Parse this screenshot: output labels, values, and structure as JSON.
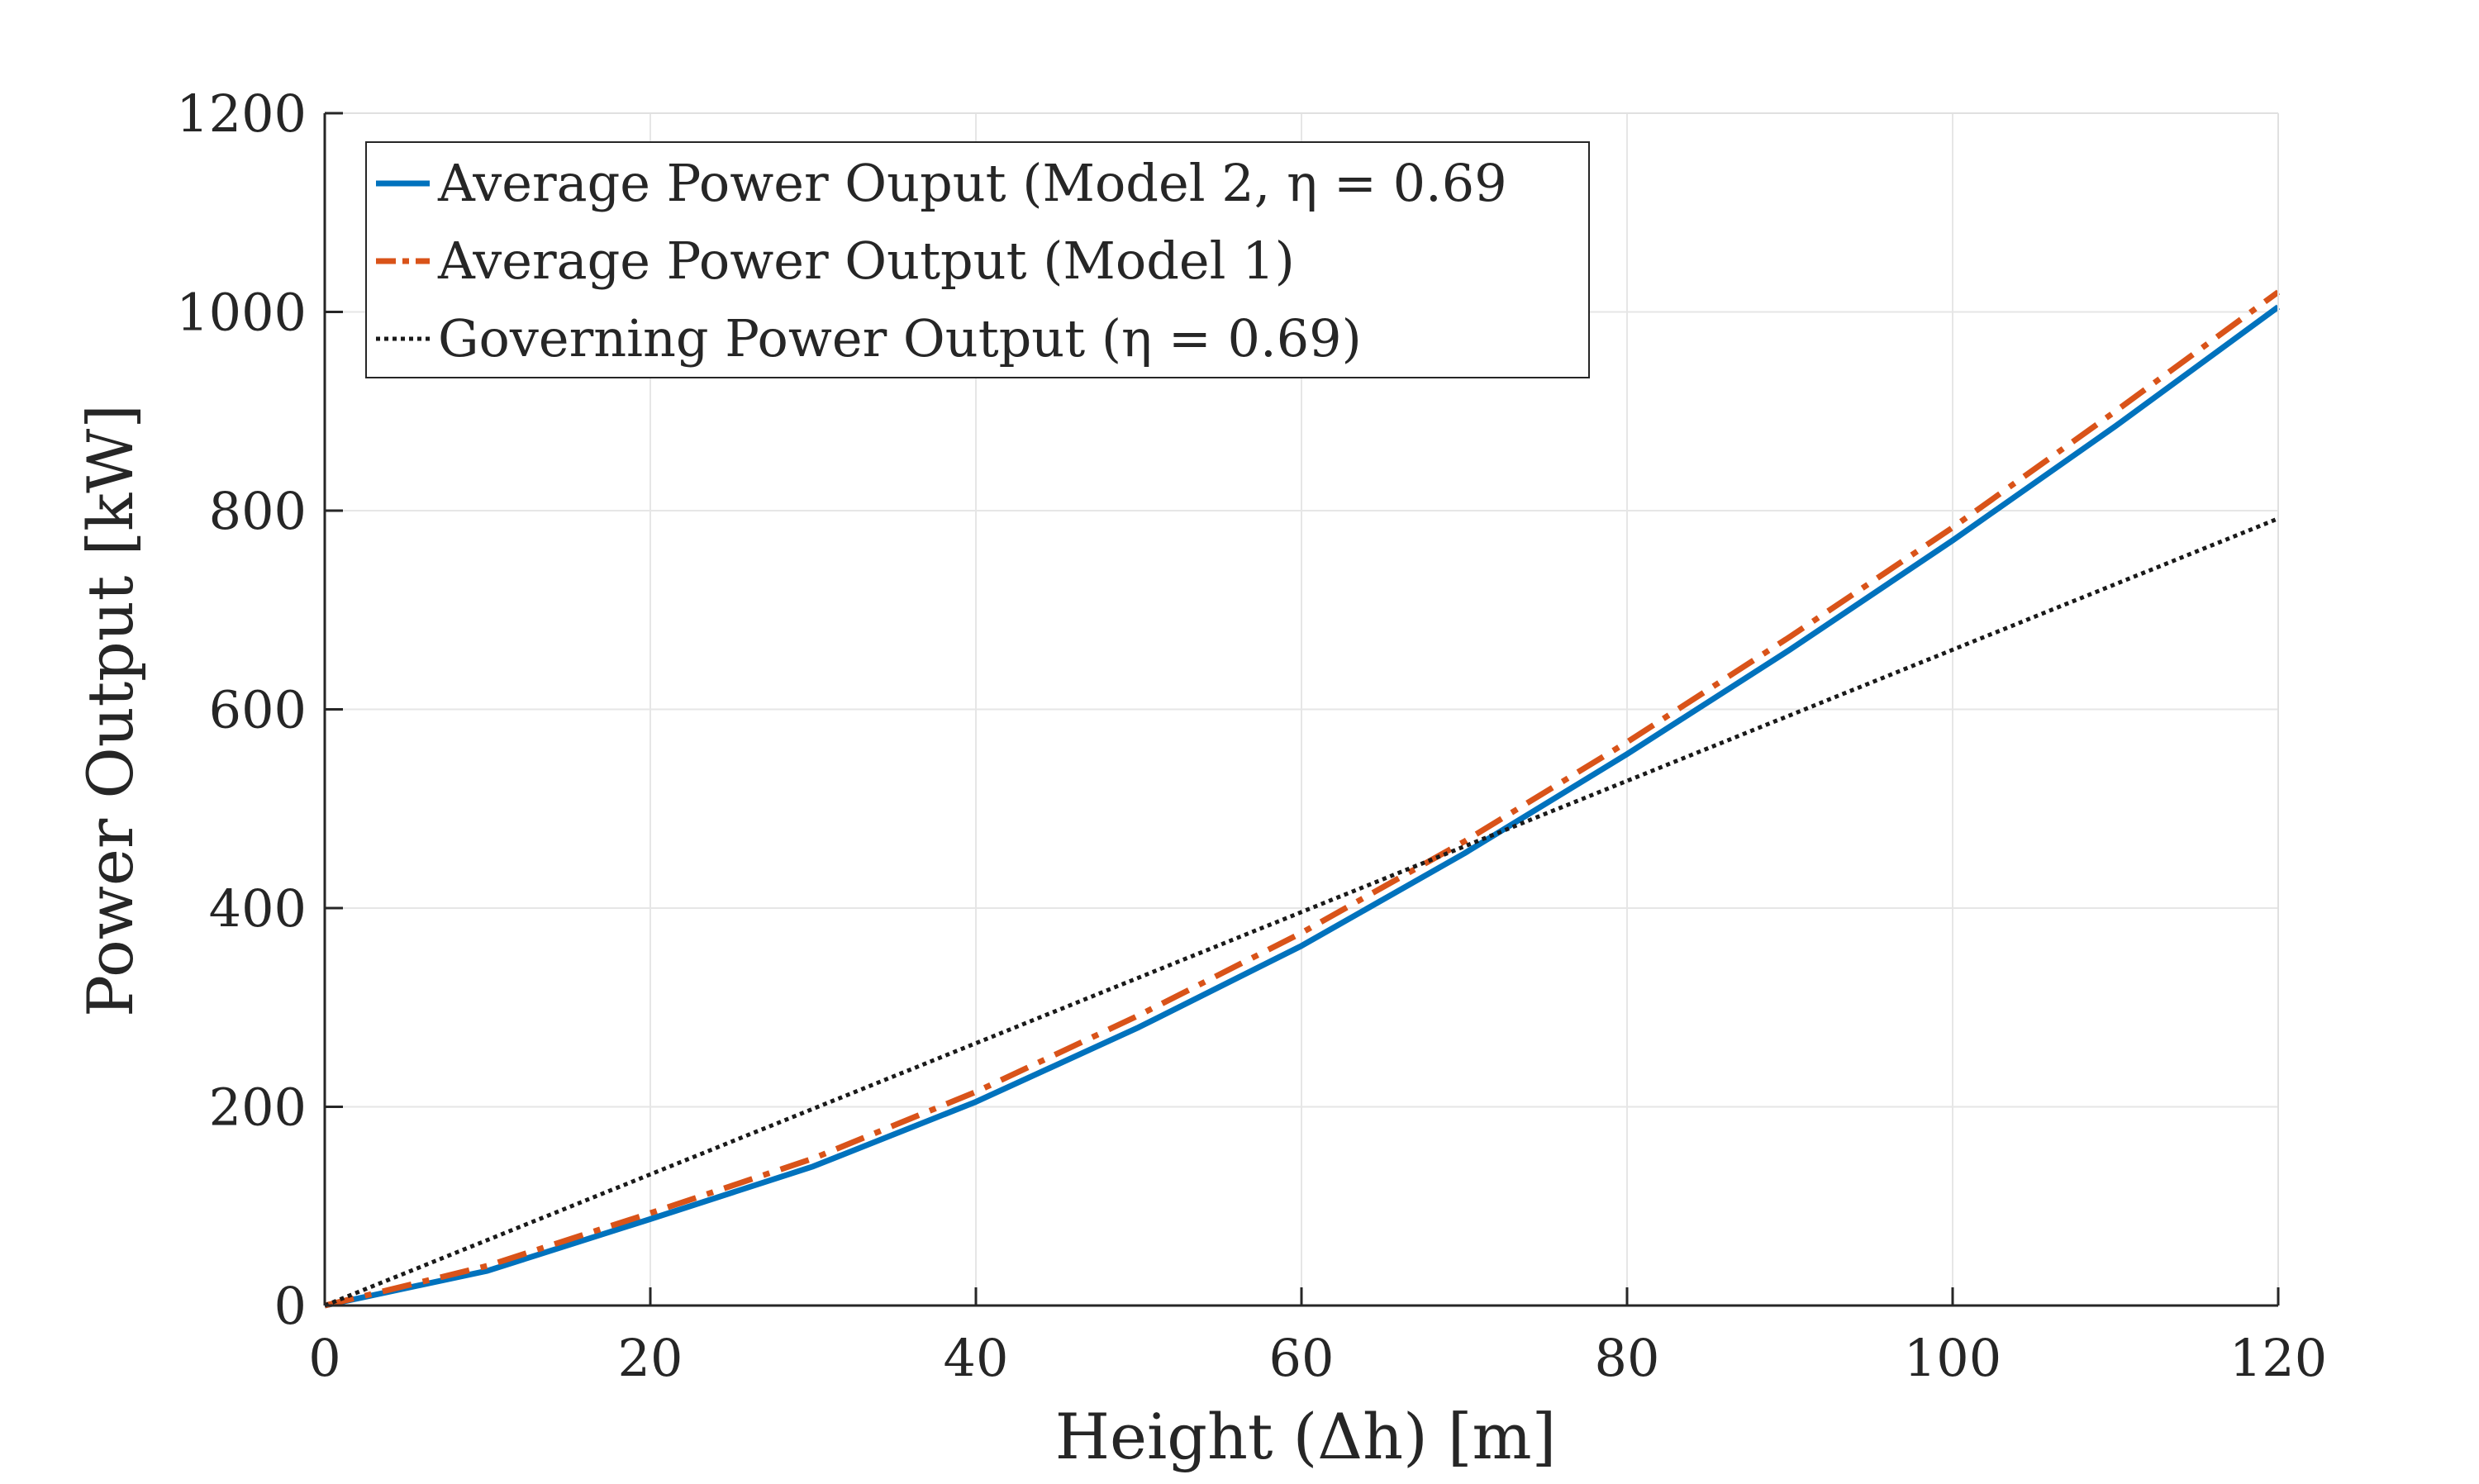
{
  "chart_data": {
    "type": "line",
    "xlabel": "Height (Δh) [m]",
    "ylabel": "Power Output [kW]",
    "xlim": [
      0,
      120
    ],
    "ylim": [
      0,
      1200
    ],
    "xticks": [
      0,
      20,
      40,
      60,
      80,
      100,
      120
    ],
    "yticks": [
      0,
      200,
      400,
      600,
      800,
      1000,
      1200
    ],
    "grid": true,
    "legend_position": "top-left",
    "series": [
      {
        "name": "Average Power Ouput (Model 2, η = 0.69",
        "style": "solid",
        "color": "#0072BD",
        "x": [
          0,
          10,
          20,
          30,
          40,
          50,
          60,
          70,
          80,
          90,
          100,
          110,
          120
        ],
        "y": [
          0,
          35,
          87,
          140,
          205,
          280,
          362,
          455,
          555,
          660,
          770,
          885,
          1005
        ]
      },
      {
        "name": "Average Power Output (Model 1)",
        "style": "dashdot",
        "color": "#D95319",
        "x": [
          0,
          10,
          20,
          30,
          40,
          50,
          60,
          70,
          80,
          90,
          100,
          110,
          120
        ],
        "y": [
          0,
          40,
          93,
          148,
          215,
          292,
          375,
          467,
          567,
          673,
          783,
          900,
          1020
        ]
      },
      {
        "name": "Governing Power Output (η = 0.69)",
        "style": "dotted",
        "color": "#1a1a1a",
        "x": [
          0,
          120
        ],
        "y": [
          0,
          792
        ]
      }
    ]
  }
}
